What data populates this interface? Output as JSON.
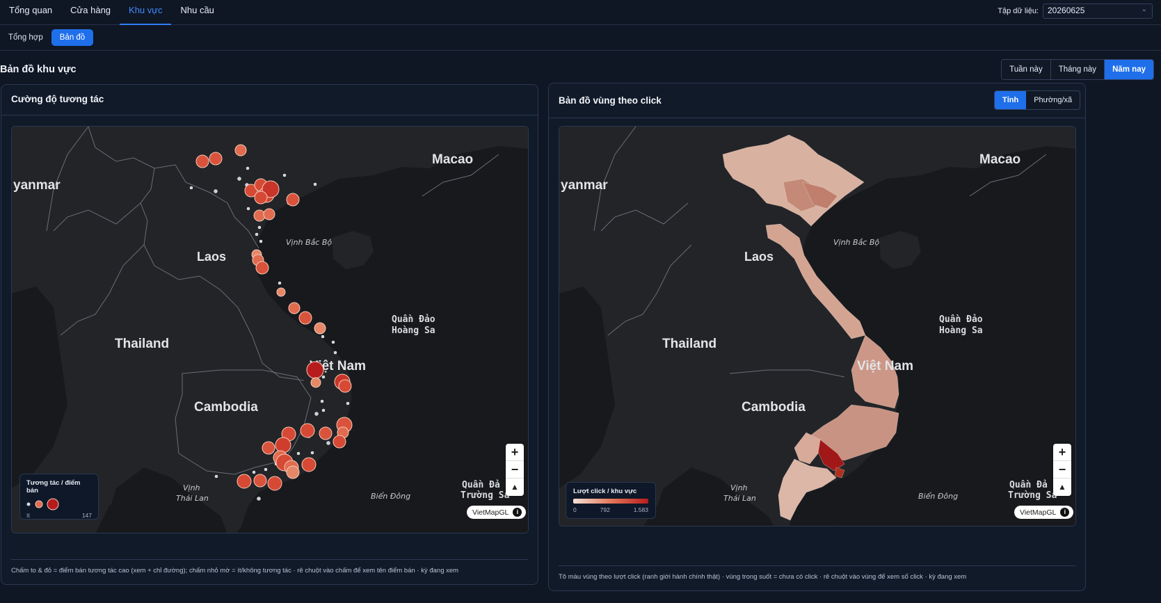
{
  "nav": {
    "tabs": [
      {
        "label": "Tổng quan"
      },
      {
        "label": "Cửa hàng"
      },
      {
        "label": "Khu vực"
      },
      {
        "label": "Nhu cầu"
      }
    ],
    "dataset_label": "Tập dữ liệu:",
    "dataset_value": "20260625"
  },
  "subnav": {
    "items": [
      {
        "label": "Tổng hợp"
      },
      {
        "label": "Bản đồ"
      }
    ]
  },
  "section": {
    "title": "Bản đồ khu vực",
    "ranges": [
      {
        "label": "Tuần này"
      },
      {
        "label": "Tháng này"
      },
      {
        "label": "Năm nay"
      }
    ]
  },
  "left_card": {
    "title": "Cường độ tương tác",
    "legend_title": "Tương tác / điểm bán",
    "legend_min": "ít",
    "legend_max": "147",
    "footnote": "Chấm to & đỏ = điểm bán tương tác cao (xem + chỉ đường); chấm nhỏ mờ = ít/không tương tác · rê chuột vào chấm để xem tên điểm bán · kỳ đang xem"
  },
  "right_card": {
    "title": "Bản đồ vùng theo click",
    "toggle": [
      {
        "label": "Tỉnh"
      },
      {
        "label": "Phường/xã"
      }
    ],
    "legend_title": "Lượt click / khu vực",
    "legend_ticks": [
      "0",
      "792",
      "1.583"
    ],
    "footnote": "Tô màu vùng theo lượt click (ranh giới hành chính thật) · vùng trong suốt = chưa có click · rê chuột vào vùng để xem số click · kỳ đang xem"
  },
  "map_labels": {
    "myanmar": "yanmar",
    "macao": "Macao",
    "laos": "Laos",
    "thailand": "Thailand",
    "cambodia": "Cambodia",
    "vietnam": "Việt Nam",
    "gulf_tonkin": "Vịnh Bắc Bộ",
    "paracel_1": "Quần Đảo",
    "paracel_2": "Hoàng Sa",
    "gulf_thailand_1": "Vịnh",
    "gulf_thailand_2": "Thái Lan",
    "east_sea": "Biển Đông",
    "spratly_1": "Quần Đả",
    "spratly_2": "Trường Sa"
  },
  "map_controls": {
    "zoom_in": "+",
    "zoom_out": "−",
    "compass": "▲",
    "attribution": "VietMapGL",
    "info": "i"
  },
  "colors": {
    "accent": "#1f6feb",
    "bubble_low": "#f0a080",
    "bubble_high": "#b71c1c",
    "choropleth_low": "#e8c4b4",
    "choropleth_high": "#a01818"
  }
}
